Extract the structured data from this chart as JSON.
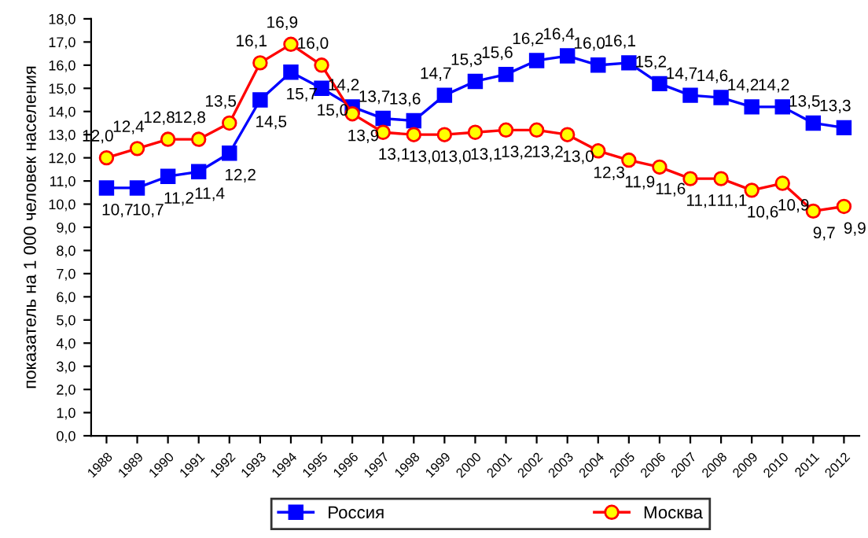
{
  "chart_data": {
    "type": "line",
    "ylabel": "показатель на 1 000 человек населения",
    "categories": [
      "1988",
      "1989",
      "1990",
      "1991",
      "1992",
      "1993",
      "1994",
      "1995",
      "1996",
      "1997",
      "1998",
      "1999",
      "2000",
      "2001",
      "2002",
      "2003",
      "2004",
      "2005",
      "2006",
      "2007",
      "2008",
      "2009",
      "2010",
      "2011",
      "2012"
    ],
    "series": [
      {
        "name": "Россия",
        "color": "#0000ff",
        "marker": "square",
        "values": [
          10.7,
          10.7,
          11.2,
          11.4,
          12.2,
          14.5,
          15.7,
          15.0,
          14.2,
          13.7,
          13.6,
          14.7,
          15.3,
          15.6,
          16.2,
          16.4,
          16.0,
          16.1,
          15.2,
          14.7,
          14.6,
          14.2,
          14.2,
          13.5,
          13.3
        ],
        "value_labels": [
          "10,7",
          "10,7",
          "11,2",
          "11,4",
          "12,2",
          "14,5",
          "15,7",
          "15,0",
          "14,2",
          "13,7",
          "13,6",
          "14,7",
          "15,3",
          "15,6",
          "16,2",
          "16,4",
          "16,0",
          "16,1",
          "15,2",
          "14,7",
          "14,6",
          "14,2",
          "14,2",
          "13,5",
          "13,3"
        ]
      },
      {
        "name": "Москва",
        "color": "#ff0000",
        "marker": "circle",
        "values": [
          12.0,
          12.4,
          12.8,
          12.8,
          13.5,
          16.1,
          16.9,
          16.0,
          13.9,
          13.1,
          13.0,
          13.0,
          13.1,
          13.2,
          13.2,
          13.0,
          12.3,
          11.9,
          11.6,
          11.1,
          11.1,
          10.6,
          10.9,
          9.7,
          9.9
        ],
        "value_labels": [
          "12,0",
          "12,4",
          "12,8",
          "12,8",
          "13,5",
          "16,1",
          "16,9",
          "16,0",
          "13,9",
          "13,1",
          "13,0",
          "13,0",
          "13,1",
          "13,2",
          "13,2",
          "13,0",
          "12,3",
          "11,9",
          "11,6",
          "11,1",
          "11,1",
          "10,6",
          "10,9",
          "9,7",
          "9,9"
        ]
      }
    ],
    "ylim": [
      0,
      18
    ],
    "yticks": [
      {
        "value": 0,
        "label": "0,0"
      },
      {
        "value": 1,
        "label": "1,0"
      },
      {
        "value": 2,
        "label": "2,0"
      },
      {
        "value": 3,
        "label": "3,0"
      },
      {
        "value": 4,
        "label": "4,0"
      },
      {
        "value": 5,
        "label": "5,0"
      },
      {
        "value": 6,
        "label": "6,0"
      },
      {
        "value": 7,
        "label": "7,0"
      },
      {
        "value": 8,
        "label": "8,0"
      },
      {
        "value": 9,
        "label": "9,0"
      },
      {
        "value": 10,
        "label": "10,0"
      },
      {
        "value": 11,
        "label": "11,0"
      },
      {
        "value": 12,
        "label": "12,0"
      },
      {
        "value": 13,
        "label": "13,0"
      },
      {
        "value": 14,
        "label": "14,0"
      },
      {
        "value": 15,
        "label": "15,0"
      },
      {
        "value": 16,
        "label": "16,0"
      },
      {
        "value": 17,
        "label": "17,0"
      },
      {
        "value": 18,
        "label": "18,0"
      }
    ],
    "grid": false,
    "legend": "bottom"
  }
}
